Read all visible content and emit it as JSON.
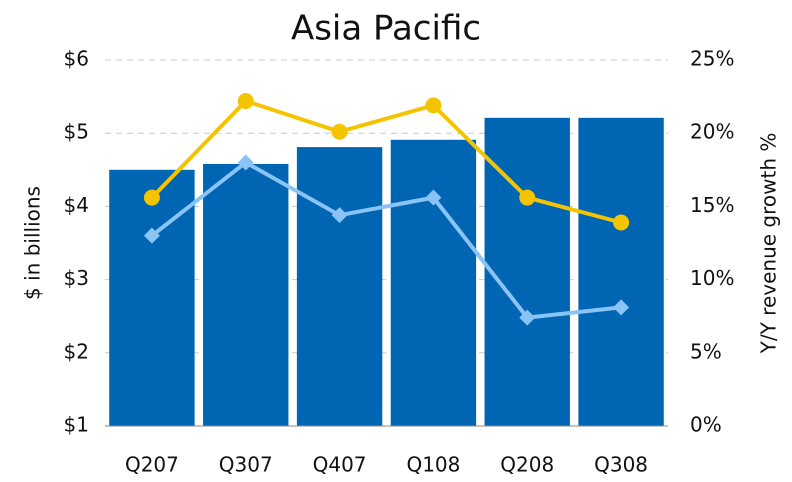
{
  "chart_data": {
    "type": "bar",
    "title": "Asia Pacific",
    "categories": [
      "Q207",
      "Q307",
      "Q407",
      "Q108",
      "Q208",
      "Q308"
    ],
    "values": [
      4.5,
      4.58,
      4.81,
      4.91,
      5.21,
      5.21
    ],
    "color": "#0066b3",
    "ylabel": "$ in billions",
    "y2label": "Y/Y revenue growth %",
    "ylim": [
      1,
      6
    ],
    "yticks": [
      {
        "value": 1,
        "label": "$1"
      },
      {
        "value": 2,
        "label": "$2"
      },
      {
        "value": 3,
        "label": "$3"
      },
      {
        "value": 4,
        "label": "$4"
      },
      {
        "value": 5,
        "label": "$5"
      },
      {
        "value": 6,
        "label": "$6"
      }
    ],
    "y2lim": [
      0,
      25
    ],
    "y2ticks": [
      {
        "value": 0,
        "label": "0%"
      },
      {
        "value": 5,
        "label": "5%"
      },
      {
        "value": 10,
        "label": "10%"
      },
      {
        "value": 15,
        "label": "15%"
      },
      {
        "value": 20,
        "label": "20%"
      },
      {
        "value": 25,
        "label": "25%"
      }
    ],
    "grid": true,
    "series": [
      {
        "type": "line",
        "axis": "y2",
        "color": "#f5c400",
        "marker": "circle",
        "values": [
          15.6,
          22.2,
          20.1,
          21.9,
          15.6,
          13.9
        ]
      },
      {
        "type": "line",
        "axis": "y2",
        "color": "#8ac4f7",
        "marker": "diamond",
        "values": [
          13.0,
          18.0,
          14.4,
          15.6,
          7.4,
          8.1
        ]
      }
    ]
  }
}
